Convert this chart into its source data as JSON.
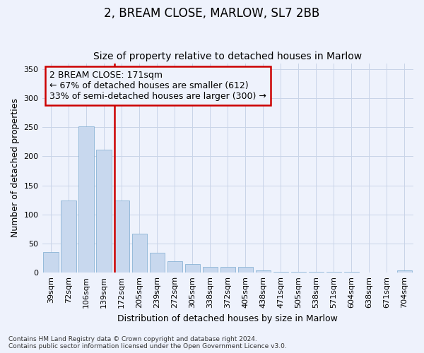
{
  "title": "2, BREAM CLOSE, MARLOW, SL7 2BB",
  "subtitle": "Size of property relative to detached houses in Marlow",
  "xlabel": "Distribution of detached houses by size in Marlow",
  "ylabel": "Number of detached properties",
  "categories": [
    "39sqm",
    "72sqm",
    "106sqm",
    "139sqm",
    "172sqm",
    "205sqm",
    "239sqm",
    "272sqm",
    "305sqm",
    "338sqm",
    "372sqm",
    "405sqm",
    "438sqm",
    "471sqm",
    "505sqm",
    "538sqm",
    "571sqm",
    "604sqm",
    "638sqm",
    "671sqm",
    "704sqm"
  ],
  "values": [
    36,
    124,
    252,
    212,
    124,
    67,
    34,
    20,
    15,
    10,
    10,
    10,
    4,
    2,
    1,
    1,
    1,
    1,
    0,
    0,
    4
  ],
  "bar_color": "#c8d8ee",
  "bar_edge_color": "#7aaad0",
  "annotation_line1": "2 BREAM CLOSE: 171sqm",
  "annotation_line2": "← 67% of detached houses are smaller (612)",
  "annotation_line3": "33% of semi-detached houses are larger (300) →",
  "annotation_box_color": "#cc0000",
  "red_line_color": "#cc0000",
  "ylim": [
    0,
    360
  ],
  "yticks": [
    0,
    50,
    100,
    150,
    200,
    250,
    300,
    350
  ],
  "footer1": "Contains HM Land Registry data © Crown copyright and database right 2024.",
  "footer2": "Contains public sector information licensed under the Open Government Licence v3.0.",
  "bg_color": "#eef2fc",
  "grid_color": "#c8d4e8",
  "title_fontsize": 12,
  "subtitle_fontsize": 10,
  "ylabel_fontsize": 9,
  "xlabel_fontsize": 9,
  "tick_fontsize": 8,
  "footer_fontsize": 6.5,
  "annotation_fontsize": 9
}
